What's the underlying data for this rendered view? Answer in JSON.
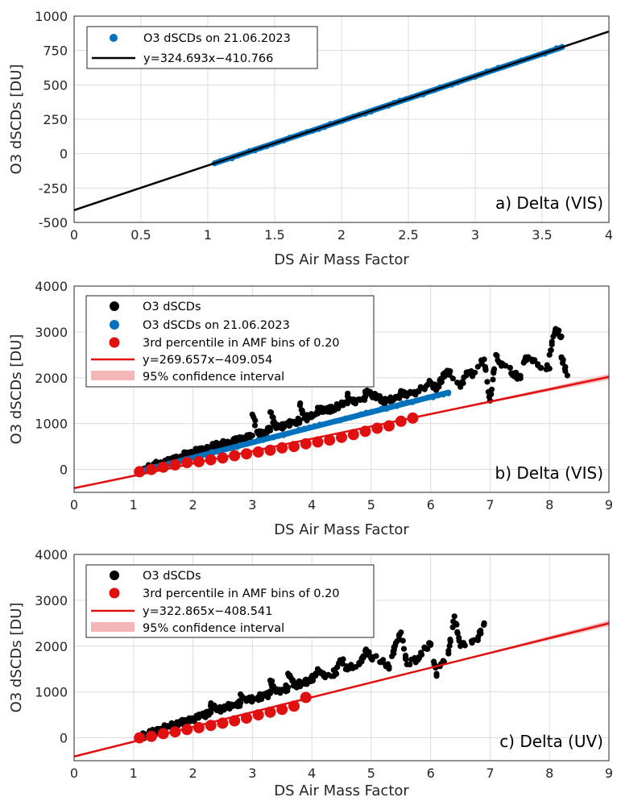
{
  "colors": {
    "blue": "#0072BD",
    "red": "#E01010",
    "black": "#000000",
    "band": "#F4B6B6",
    "grid": "#DCDCDC"
  },
  "chart_data": [
    {
      "type": "scatter",
      "xlabel": "DS Air Mass Factor",
      "ylabel": "O3 dSCDs [DU]",
      "xlim": [
        0,
        4
      ],
      "ylim": [
        -500,
        1000
      ],
      "xticks": [
        0,
        0.5,
        1,
        1.5,
        2,
        2.5,
        3,
        3.5,
        4
      ],
      "xtick_labels": [
        "0",
        "0.5",
        "1",
        "1.5",
        "2",
        "2.5",
        "3",
        "3.5",
        "4"
      ],
      "yticks": [
        -500,
        -250,
        0,
        250,
        500,
        750,
        1000
      ],
      "ytick_labels": [
        "-500",
        "-250",
        "0",
        "250",
        "500",
        "750",
        "1000"
      ],
      "grid": true,
      "legend_position": "top-left",
      "annotation": "a) Delta (VIS)",
      "series": [
        {
          "name": "O3 dSCDs on 21.06.2023",
          "kind": "dense-points",
          "color": "#0072BD",
          "x_range": [
            1.05,
            3.65
          ],
          "slope": 324.693,
          "intercept": -410.766
        },
        {
          "name": "y=324.693x−410.766",
          "kind": "fit-line",
          "color": "#000000",
          "slope": 324.693,
          "intercept": -410.766
        }
      ]
    },
    {
      "type": "scatter",
      "xlabel": "DS Air Mass Factor",
      "ylabel": "O3 dSCDs [DU]",
      "xlim": [
        0,
        9
      ],
      "ylim": [
        -500,
        4000
      ],
      "xticks": [
        0,
        1,
        2,
        3,
        4,
        5,
        6,
        7,
        8,
        9
      ],
      "xtick_labels": [
        "0",
        "1",
        "2",
        "3",
        "4",
        "5",
        "6",
        "7",
        "8",
        "9"
      ],
      "yticks": [
        0,
        1000,
        2000,
        3000,
        4000
      ],
      "ytick_labels": [
        "0",
        "1000",
        "2000",
        "3000",
        "4000"
      ],
      "grid": true,
      "legend_position": "top-left",
      "annotation": "b) Delta (VIS)",
      "series": [
        {
          "name": "O3 dSCDs",
          "kind": "scatter",
          "color": "#000000",
          "points": [
            [
              1.1,
              -50
            ],
            [
              1.2,
              20
            ],
            [
              1.3,
              60
            ],
            [
              1.4,
              110
            ],
            [
              1.5,
              150
            ],
            [
              1.6,
              200
            ],
            [
              1.7,
              250
            ],
            [
              1.8,
              290
            ],
            [
              1.9,
              330
            ],
            [
              2.0,
              370
            ],
            [
              2.1,
              420
            ],
            [
              2.2,
              450
            ],
            [
              2.3,
              490
            ],
            [
              2.4,
              520
            ],
            [
              2.5,
              560
            ],
            [
              2.6,
              600
            ],
            [
              2.7,
              630
            ],
            [
              2.8,
              670
            ],
            [
              2.9,
              700
            ],
            [
              3.0,
              740
            ],
            [
              3.1,
              780
            ],
            [
              3.2,
              820
            ],
            [
              3.3,
              850
            ],
            [
              3.4,
              900
            ],
            [
              3.5,
              950
            ],
            [
              3.6,
              1000
            ],
            [
              3.7,
              1040
            ],
            [
              3.8,
              1080
            ],
            [
              3.9,
              1120
            ],
            [
              4.0,
              1170
            ],
            [
              4.1,
              1220
            ],
            [
              4.2,
              1260
            ],
            [
              4.3,
              1300
            ],
            [
              4.4,
              1350
            ],
            [
              4.5,
              1400
            ],
            [
              4.6,
              1440
            ],
            [
              4.7,
              1480
            ],
            [
              4.8,
              1530
            ],
            [
              4.9,
              1580
            ],
            [
              5.0,
              1620
            ],
            [
              5.1,
              1600
            ],
            [
              5.2,
              1480
            ],
            [
              5.3,
              1500
            ],
            [
              5.4,
              1550
            ],
            [
              5.6,
              1600
            ],
            [
              5.8,
              1700
            ],
            [
              6.0,
              1900
            ],
            [
              6.2,
              2000
            ],
            [
              6.3,
              2150
            ],
            [
              6.5,
              1800
            ],
            [
              6.7,
              2100
            ],
            [
              6.9,
              2400
            ],
            [
              7.0,
              1500
            ],
            [
              7.2,
              2300
            ],
            [
              7.4,
              2100
            ],
            [
              7.6,
              2450
            ],
            [
              7.8,
              2300
            ],
            [
              8.0,
              2200
            ],
            [
              8.1,
              3050
            ],
            [
              8.2,
              2900
            ],
            [
              8.2,
              2450
            ],
            [
              8.3,
              2050
            ],
            [
              3.0,
              1200
            ],
            [
              3.3,
              1250
            ],
            [
              3.8,
              1400
            ],
            [
              4.1,
              1350
            ],
            [
              4.6,
              1600
            ],
            [
              4.9,
              1700
            ],
            [
              5.5,
              1650
            ],
            [
              6.1,
              1750
            ],
            [
              6.6,
              2050
            ],
            [
              7.1,
              2500
            ],
            [
              7.5,
              2000
            ],
            [
              8.0,
              2500
            ]
          ]
        },
        {
          "name": "O3 dSCDs on 21.06.2023",
          "kind": "dense-points",
          "color": "#0072BD",
          "x_range": [
            1.1,
            6.3
          ],
          "line_start": [
            1.1,
            -40
          ],
          "line_end": [
            6.3,
            1680
          ]
        },
        {
          "name": "3rd percentile in AMF bins of 0.20",
          "kind": "markers",
          "color": "#E01010",
          "points": [
            [
              1.1,
              -50
            ],
            [
              1.3,
              0
            ],
            [
              1.5,
              50
            ],
            [
              1.7,
              100
            ],
            [
              1.9,
              150
            ],
            [
              2.1,
              170
            ],
            [
              2.3,
              210
            ],
            [
              2.5,
              250
            ],
            [
              2.7,
              300
            ],
            [
              2.9,
              340
            ],
            [
              3.1,
              380
            ],
            [
              3.3,
              420
            ],
            [
              3.5,
              470
            ],
            [
              3.7,
              500
            ],
            [
              3.9,
              560
            ],
            [
              4.1,
              600
            ],
            [
              4.3,
              640
            ],
            [
              4.5,
              700
            ],
            [
              4.7,
              760
            ],
            [
              4.9,
              830
            ],
            [
              5.1,
              900
            ],
            [
              5.3,
              950
            ],
            [
              5.5,
              1050
            ],
            [
              5.7,
              1120
            ]
          ]
        },
        {
          "name": "y=269.657x−409.054",
          "kind": "fit-line",
          "color": "#E01010",
          "slope": 269.657,
          "intercept": -409.054
        },
        {
          "name": "95% confidence interval",
          "kind": "band",
          "color": "#F4B6B6"
        }
      ]
    },
    {
      "type": "scatter",
      "xlabel": "DS Air Mass Factor",
      "ylabel": "O3 dSCDs [DU]",
      "xlim": [
        0,
        9
      ],
      "ylim": [
        -500,
        4000
      ],
      "xticks": [
        0,
        1,
        2,
        3,
        4,
        5,
        6,
        7,
        8,
        9
      ],
      "xtick_labels": [
        "0",
        "1",
        "2",
        "3",
        "4",
        "5",
        "6",
        "7",
        "8",
        "9"
      ],
      "yticks": [
        0,
        1000,
        2000,
        3000,
        4000
      ],
      "ytick_labels": [
        "0",
        "1000",
        "2000",
        "3000",
        "4000"
      ],
      "grid": true,
      "legend_position": "top-left",
      "annotation": "c) Delta (UV)",
      "series": [
        {
          "name": "O3 dSCDs",
          "kind": "scatter",
          "color": "#000000",
          "points": [
            [
              1.1,
              20
            ],
            [
              1.2,
              60
            ],
            [
              1.3,
              100
            ],
            [
              1.4,
              150
            ],
            [
              1.5,
              200
            ],
            [
              1.6,
              250
            ],
            [
              1.7,
              280
            ],
            [
              1.8,
              320
            ],
            [
              1.9,
              370
            ],
            [
              2.0,
              420
            ],
            [
              2.1,
              460
            ],
            [
              2.2,
              500
            ],
            [
              2.3,
              550
            ],
            [
              2.4,
              600
            ],
            [
              2.5,
              640
            ],
            [
              2.6,
              680
            ],
            [
              2.7,
              720
            ],
            [
              2.8,
              760
            ],
            [
              2.9,
              800
            ],
            [
              3.0,
              850
            ],
            [
              3.1,
              880
            ],
            [
              3.2,
              920
            ],
            [
              3.3,
              970
            ],
            [
              3.4,
              1000
            ],
            [
              3.5,
              1050
            ],
            [
              3.6,
              1100
            ],
            [
              3.7,
              1150
            ],
            [
              3.8,
              1180
            ],
            [
              3.9,
              1230
            ],
            [
              4.0,
              1280
            ],
            [
              4.2,
              1350
            ],
            [
              4.4,
              1420
            ],
            [
              4.6,
              1500
            ],
            [
              4.8,
              1600
            ],
            [
              4.9,
              1900
            ],
            [
              5.0,
              1750
            ],
            [
              5.2,
              1700
            ],
            [
              5.4,
              2000
            ],
            [
              5.5,
              2300
            ],
            [
              5.6,
              1600
            ],
            [
              5.8,
              1750
            ],
            [
              6.0,
              2050
            ],
            [
              6.1,
              1350
            ],
            [
              6.3,
              1900
            ],
            [
              6.4,
              2650
            ],
            [
              6.5,
              2000
            ],
            [
              6.8,
              2200
            ],
            [
              6.9,
              2500
            ],
            [
              3.3,
              1250
            ],
            [
              3.6,
              1400
            ],
            [
              4.1,
              1500
            ],
            [
              4.5,
              1700
            ],
            [
              5.3,
              1550
            ],
            [
              5.9,
              1950
            ],
            [
              2.8,
              950
            ],
            [
              2.3,
              700
            ]
          ]
        },
        {
          "name": "3rd percentile in AMF bins of 0.20",
          "kind": "markers",
          "color": "#E01010",
          "points": [
            [
              1.1,
              0
            ],
            [
              1.3,
              30
            ],
            [
              1.5,
              90
            ],
            [
              1.7,
              130
            ],
            [
              1.9,
              180
            ],
            [
              2.1,
              220
            ],
            [
              2.3,
              270
            ],
            [
              2.5,
              320
            ],
            [
              2.7,
              370
            ],
            [
              2.9,
              430
            ],
            [
              3.1,
              500
            ],
            [
              3.3,
              560
            ],
            [
              3.5,
              620
            ],
            [
              3.7,
              690
            ],
            [
              3.9,
              880
            ]
          ]
        },
        {
          "name": "y=322.865x−408.541",
          "kind": "fit-line",
          "color": "#E01010",
          "slope": 322.865,
          "intercept": -408.541
        },
        {
          "name": "95% confidence interval",
          "kind": "band",
          "color": "#F4B6B6"
        }
      ]
    }
  ]
}
